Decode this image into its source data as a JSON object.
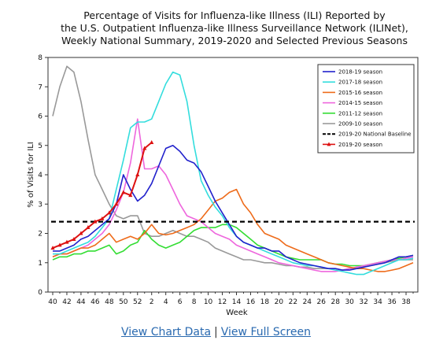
{
  "chart_data": {
    "type": "line",
    "title_lines": [
      "Percentage of Visits for Influenza-like Illness (ILI) Reported by",
      "the U.S. Outpatient Influenza-like Illness Surveillance Network (ILINet),",
      "Weekly National Summary, 2019-2020 and Selected Previous Seasons"
    ],
    "xlabel": "Week",
    "ylabel": "% of Visits for ILI",
    "ylim": [
      0,
      8
    ],
    "yticks": [
      "0",
      "1",
      "2",
      "3",
      "4",
      "5",
      "6",
      "7",
      "8"
    ],
    "xtick_labels": [
      "40",
      "42",
      "44",
      "46",
      "48",
      "50",
      "52",
      "2",
      "4",
      "6",
      "8",
      "10",
      "12",
      "14",
      "16",
      "18",
      "20",
      "22",
      "24",
      "26",
      "28",
      "30",
      "32",
      "34",
      "36",
      "38"
    ],
    "legend_position": "top-right",
    "baseline": {
      "name": "2019-20 National Baseline",
      "value": 2.4,
      "color": "#000000"
    },
    "series": [
      {
        "name": "2018-19 season",
        "color": "#2222cc",
        "values": [
          1.4,
          1.4,
          1.5,
          1.6,
          1.8,
          1.9,
          2.1,
          2.3,
          2.5,
          3.0,
          4.0,
          3.5,
          3.1,
          3.3,
          3.7,
          4.3,
          4.9,
          5.0,
          4.8,
          4.5,
          4.4,
          4.1,
          3.6,
          3.1,
          2.7,
          2.3,
          1.9,
          1.7,
          1.6,
          1.5,
          1.5,
          1.4,
          1.4,
          1.2,
          1.1,
          1.0,
          0.95,
          0.9,
          0.85,
          0.8,
          0.8,
          0.75,
          0.75,
          0.8,
          0.85,
          0.9,
          0.95,
          1.0,
          1.1,
          1.2,
          1.2,
          1.25
        ]
      },
      {
        "name": "2017-18 season",
        "color": "#33dddd",
        "values": [
          1.3,
          1.3,
          1.4,
          1.5,
          1.6,
          1.7,
          1.9,
          2.2,
          2.5,
          3.5,
          4.5,
          5.6,
          5.8,
          5.8,
          5.9,
          6.5,
          7.1,
          7.5,
          7.4,
          6.5,
          5.0,
          3.8,
          3.3,
          2.9,
          2.6,
          2.2,
          1.9,
          1.7,
          1.6,
          1.5,
          1.4,
          1.3,
          1.2,
          1.1,
          1.0,
          0.95,
          0.9,
          0.9,
          0.85,
          0.8,
          0.75,
          0.7,
          0.65,
          0.6,
          0.6,
          0.7,
          0.8,
          0.9,
          1.0,
          1.1,
          1.1,
          1.15
        ]
      },
      {
        "name": "2015-16 season",
        "color": "#ee6b1a",
        "values": [
          1.2,
          1.3,
          1.3,
          1.4,
          1.5,
          1.5,
          1.6,
          1.8,
          2.0,
          1.7,
          1.8,
          1.9,
          1.8,
          2.0,
          2.3,
          2.0,
          1.95,
          2.0,
          2.1,
          2.2,
          2.3,
          2.5,
          2.8,
          3.1,
          3.2,
          3.4,
          3.5,
          3.0,
          2.7,
          2.3,
          2.0,
          1.9,
          1.8,
          1.6,
          1.5,
          1.4,
          1.3,
          1.2,
          1.1,
          1.0,
          0.95,
          0.9,
          0.85,
          0.8,
          0.8,
          0.75,
          0.7,
          0.7,
          0.75,
          0.8,
          0.9,
          1.0
        ]
      },
      {
        "name": "2014-15 season",
        "color": "#ee66dd",
        "values": [
          1.2,
          1.3,
          1.3,
          1.4,
          1.5,
          1.6,
          1.8,
          2.0,
          2.3,
          2.8,
          3.4,
          4.4,
          5.9,
          4.2,
          4.2,
          4.3,
          4.0,
          3.5,
          3.0,
          2.6,
          2.5,
          2.4,
          2.2,
          2.0,
          1.9,
          1.8,
          1.6,
          1.5,
          1.4,
          1.3,
          1.2,
          1.1,
          1.0,
          0.95,
          0.9,
          0.85,
          0.8,
          0.75,
          0.7,
          0.7,
          0.7,
          0.75,
          0.8,
          0.85,
          0.9,
          0.95,
          1.0,
          1.05,
          1.1,
          1.1,
          1.15,
          1.2
        ]
      },
      {
        "name": "2011-12 season",
        "color": "#33dd33",
        "values": [
          1.1,
          1.2,
          1.2,
          1.3,
          1.3,
          1.4,
          1.4,
          1.5,
          1.6,
          1.3,
          1.4,
          1.6,
          1.7,
          2.1,
          1.8,
          1.6,
          1.5,
          1.6,
          1.7,
          1.9,
          2.1,
          2.2,
          2.2,
          2.2,
          2.3,
          2.3,
          2.2,
          2.0,
          1.8,
          1.6,
          1.5,
          1.4,
          1.3,
          1.2,
          1.15,
          1.1,
          1.1,
          1.1,
          1.1,
          1.0,
          0.95,
          0.95,
          0.9,
          0.9,
          0.9,
          0.95,
          1.0,
          1.05,
          1.1,
          1.15,
          1.2,
          1.25
        ]
      },
      {
        "name": "2009-10 season",
        "color": "#999999",
        "values": [
          6.0,
          7.0,
          7.7,
          7.5,
          6.5,
          5.2,
          4.0,
          3.5,
          3.0,
          2.6,
          2.5,
          2.6,
          2.6,
          2.0,
          1.9,
          1.9,
          2.0,
          2.1,
          2.0,
          1.9,
          1.9,
          1.8,
          1.7,
          1.5,
          1.4,
          1.3,
          1.2,
          1.1,
          1.1,
          1.05,
          1.0,
          1.0,
          0.95,
          0.9,
          0.9,
          0.85,
          0.85,
          0.8,
          0.8,
          0.8,
          0.8,
          0.75,
          0.8,
          0.8,
          0.85,
          0.9,
          0.95,
          1.0,
          1.05,
          1.1,
          1.1,
          1.1
        ]
      },
      {
        "name": "2019-20 season",
        "color": "#dd1111",
        "markers": true,
        "values": [
          1.5,
          1.6,
          1.7,
          1.8,
          2.0,
          2.2,
          2.4,
          2.5,
          2.7,
          3.0,
          3.4,
          3.3,
          4.0,
          4.9,
          5.1
        ]
      }
    ]
  },
  "footer": {
    "view_data_label": "View Chart Data",
    "separator": "|",
    "full_screen_label": "View Full Screen"
  }
}
